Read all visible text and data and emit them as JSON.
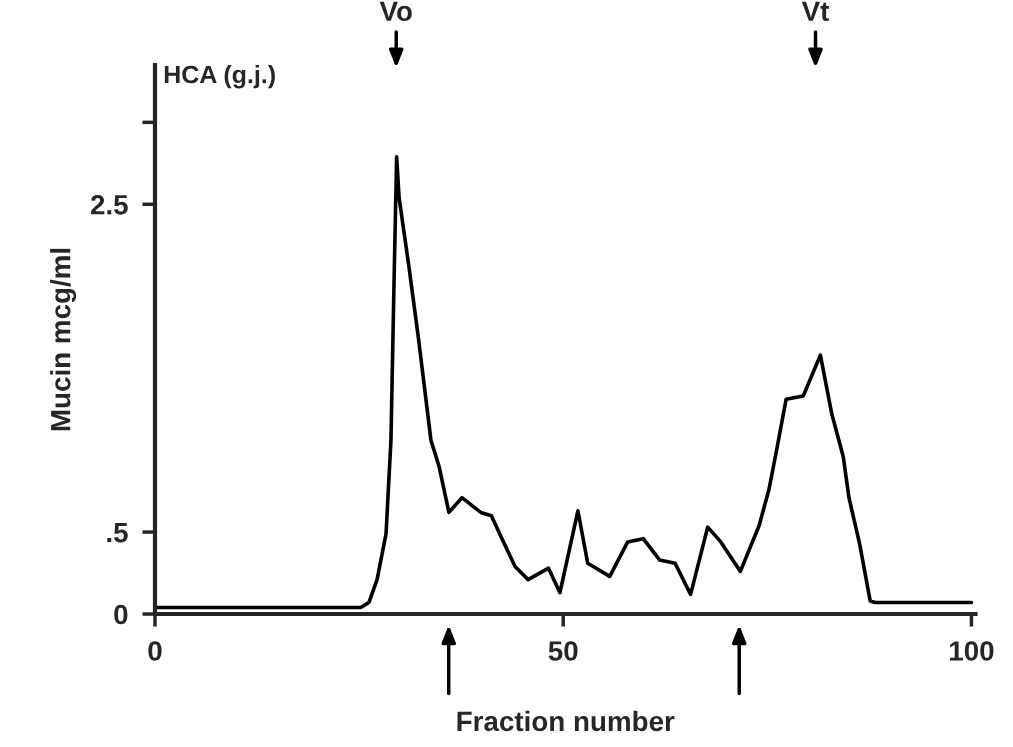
{
  "chart_data": {
    "type": "line",
    "xlabel": "Fraction number",
    "ylabel": "Mucin mcg/ml",
    "x": [
      0,
      25.2,
      26.2,
      27.2,
      28.3,
      28.9,
      29.3,
      29.6,
      29.9,
      31.1,
      32.3,
      33.8,
      34.8,
      36.0,
      37.6,
      39.9,
      41.2,
      42.4,
      44.1,
      45.7,
      48.2,
      49.6,
      51.8,
      53.0,
      55.7,
      57.9,
      59.8,
      61.8,
      63.7,
      65.6,
      67.7,
      69.3,
      71.7,
      74.0,
      75.2,
      76.1,
      77.3,
      79.4,
      81.5,
      82.9,
      84.3,
      85.0,
      86.3,
      87.6,
      88.2,
      100
    ],
    "series": [
      {
        "color": "#000000",
        "values": [
          0.04,
          0.04,
          0.07,
          0.21,
          0.49,
          1.06,
          2.08,
          2.79,
          2.54,
          2.12,
          1.67,
          1.06,
          0.9,
          0.62,
          0.71,
          0.62,
          0.6,
          0.47,
          0.29,
          0.21,
          0.28,
          0.13,
          0.63,
          0.31,
          0.23,
          0.44,
          0.46,
          0.33,
          0.31,
          0.12,
          0.53,
          0.44,
          0.26,
          0.54,
          0.76,
          0.99,
          1.31,
          1.33,
          1.58,
          1.22,
          0.96,
          0.71,
          0.43,
          0.08,
          0.07,
          0.07
        ]
      }
    ],
    "xlim": [
      0,
      100.5
    ],
    "ylim": [
      0,
      3.35
    ],
    "xticks": [
      0,
      50,
      100
    ],
    "yticks": [
      0,
      {
        "value": 0.5,
        "label": ".5"
      },
      2.5,
      {
        "value": 3.0,
        "label": null
      }
    ],
    "grid": false,
    "legend": false,
    "marker": "none",
    "line_style": "solid",
    "annotations": [
      "HCA (g.j.)",
      "Vo",
      "Vt"
    ]
  }
}
